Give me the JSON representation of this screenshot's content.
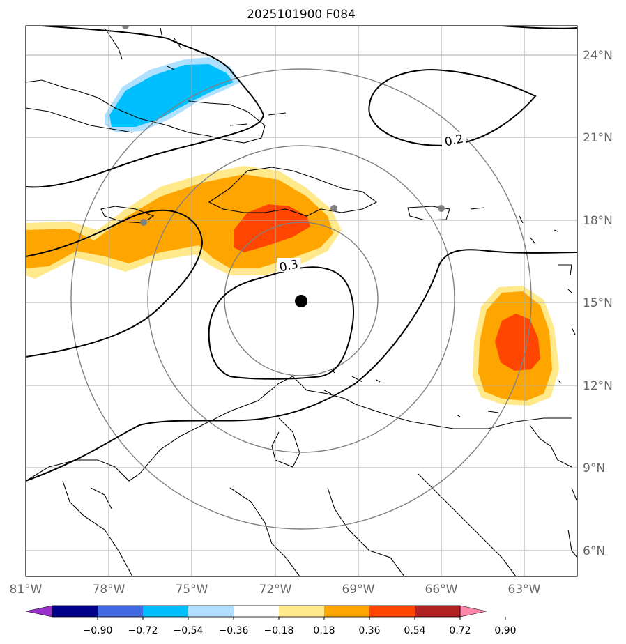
{
  "title": "2025101900 F084",
  "lat_labels": [
    "24°N",
    "21°N",
    "18°N",
    "15°N",
    "12°N",
    "9°N",
    "6°N"
  ],
  "lon_labels": [
    "81°W",
    "78°W",
    "75°W",
    "72°W",
    "69°W",
    "66°W",
    "63°W"
  ],
  "contour_labels": [
    "0.2",
    "0.3"
  ],
  "colorbar": {
    "ticks": [
      "−0.90",
      "−0.72",
      "−0.54",
      "−0.36",
      "−0.18",
      "0.18",
      "0.36",
      "0.54",
      "0.72",
      "0.90"
    ],
    "colors": [
      "#9932cc",
      "#00008b",
      "#4169e1",
      "#00bfff",
      "#b0e0ff",
      "#ffffff",
      "#ffe98a",
      "#ffa500",
      "#ff4500",
      "#b22222",
      "#ff88aa"
    ]
  },
  "storm_center": {
    "lon": -71,
    "lat": 15
  }
}
